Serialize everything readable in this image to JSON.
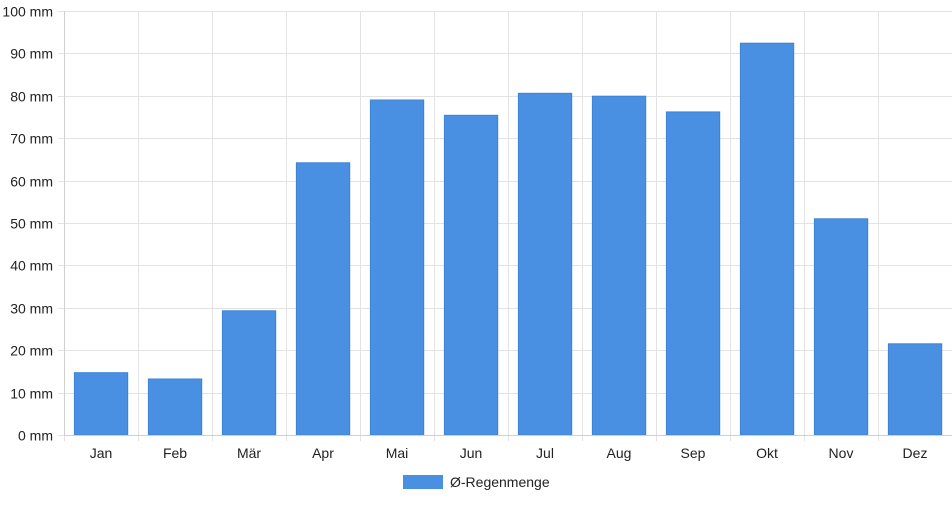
{
  "chart_data": {
    "type": "bar",
    "categories": [
      "Jan",
      "Feb",
      "Mär",
      "Apr",
      "Mai",
      "Jun",
      "Jul",
      "Aug",
      "Sep",
      "Okt",
      "Nov",
      "Dez"
    ],
    "series": [
      {
        "name": "Ø-Regenmenge",
        "values": [
          14.7,
          13.2,
          29.3,
          64.2,
          79.0,
          75.4,
          80.6,
          79.9,
          76.2,
          92.4,
          51.0,
          21.5
        ],
        "color": "#4a90e2"
      }
    ],
    "y_unit": "mm",
    "ylim": [
      0,
      100
    ],
    "y_ticks": [
      0,
      10,
      20,
      30,
      40,
      50,
      60,
      70,
      80,
      90,
      100
    ],
    "y_tick_labels": [
      "0 mm",
      "10 mm",
      "20 mm",
      "30 mm",
      "40 mm",
      "50 mm",
      "60 mm",
      "70 mm",
      "80 mm",
      "90 mm",
      "100 mm"
    ],
    "grid": true,
    "legend_position": "bottom"
  }
}
